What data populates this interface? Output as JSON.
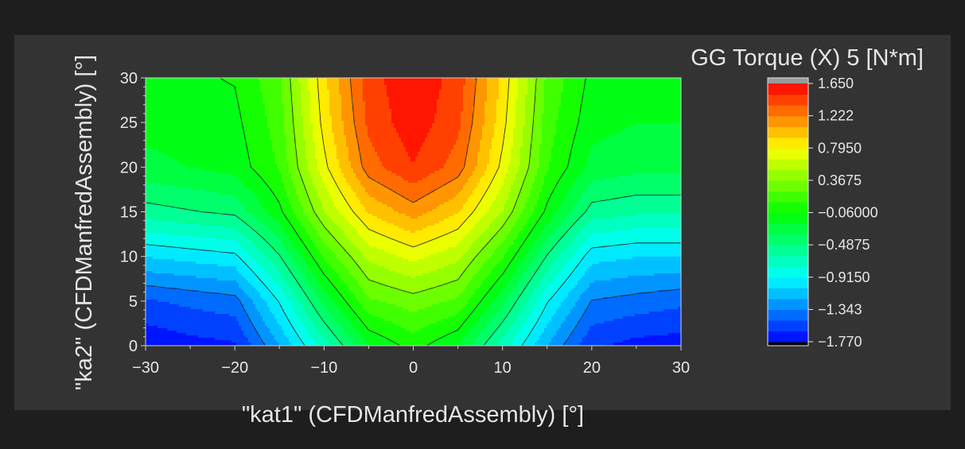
{
  "chart_data": {
    "type": "heatmap",
    "subtype": "filled-contour",
    "xlabel": "\"kat1\" (CFDManfredAssembly) [°]",
    "ylabel": "\"ka2\" (CFDManfredAssembly) [°]",
    "colorbar_title": "GG Torque (X) 5 [N*m]",
    "x": [
      -30,
      -25,
      -20,
      -15,
      -10,
      -5,
      0,
      5,
      10,
      15,
      20,
      25,
      30
    ],
    "y": [
      0,
      5,
      10,
      15,
      20,
      25,
      30
    ],
    "xlim": [
      -30,
      30
    ],
    "ylim": [
      0,
      30
    ],
    "x_ticks": [
      -30,
      -20,
      -10,
      0,
      10,
      20,
      30
    ],
    "y_ticks": [
      0,
      5,
      10,
      15,
      20,
      25,
      30
    ],
    "x_tick_labels": [
      "−30",
      "−20",
      "−10",
      "0",
      "10",
      "20",
      "30"
    ],
    "y_tick_labels": [
      "0",
      "5",
      "10",
      "15",
      "20",
      "25",
      "30"
    ],
    "z": [
      [
        -1.75,
        -1.68,
        -1.65,
        -1.2,
        -0.7,
        -0.2,
        0.0,
        -0.2,
        -0.7,
        -1.2,
        -1.6,
        -1.68,
        -1.7
      ],
      [
        -1.5,
        -1.45,
        -1.4,
        -0.9,
        -0.3,
        0.2,
        0.3,
        0.2,
        -0.3,
        -0.9,
        -1.35,
        -1.4,
        -1.45
      ],
      [
        -1.05,
        -1.0,
        -0.95,
        -0.5,
        0.1,
        0.55,
        0.7,
        0.55,
        0.1,
        -0.5,
        -1.0,
        -1.05,
        -1.05
      ],
      [
        -0.55,
        -0.5,
        -0.45,
        -0.1,
        0.5,
        0.95,
        1.15,
        0.95,
        0.5,
        -0.1,
        -0.55,
        -0.6,
        -0.6
      ],
      [
        -0.25,
        -0.2,
        -0.15,
        0.1,
        0.75,
        1.3,
        1.5,
        1.3,
        0.75,
        0.1,
        -0.25,
        -0.3,
        -0.3
      ],
      [
        -0.15,
        -0.12,
        -0.1,
        0.15,
        0.85,
        1.4,
        1.6,
        1.4,
        0.85,
        0.15,
        -0.15,
        -0.2,
        -0.2
      ],
      [
        -0.1,
        -0.08,
        -0.05,
        0.2,
        0.9,
        1.45,
        1.62,
        1.45,
        0.9,
        0.2,
        -0.1,
        -0.15,
        -0.15
      ]
    ],
    "zmin": -1.77,
    "zmax": 1.65,
    "colorbar_ticks": [
      1.65,
      1.222,
      0.795,
      0.3675,
      -0.06,
      -0.4875,
      -0.915,
      -1.343,
      -1.77
    ],
    "colorbar_tick_labels": [
      "1.650",
      "1.222",
      "0.7950",
      "0.3675",
      "−0.06000",
      "−0.4875",
      "−0.9150",
      "−1.343",
      "−1.770"
    ],
    "contour_levels": [
      -1.343,
      -0.915,
      -0.4875,
      -0.06,
      0.3675,
      0.795,
      1.222
    ],
    "colormap": [
      "#0000ff",
      "#0080ff",
      "#00ffff",
      "#00ff80",
      "#00ff00",
      "#80ff00",
      "#ffff00",
      "#ff8000",
      "#ff0000"
    ],
    "overflow_colors": {
      "above": "#9a9a9a",
      "below": "#000000"
    }
  }
}
